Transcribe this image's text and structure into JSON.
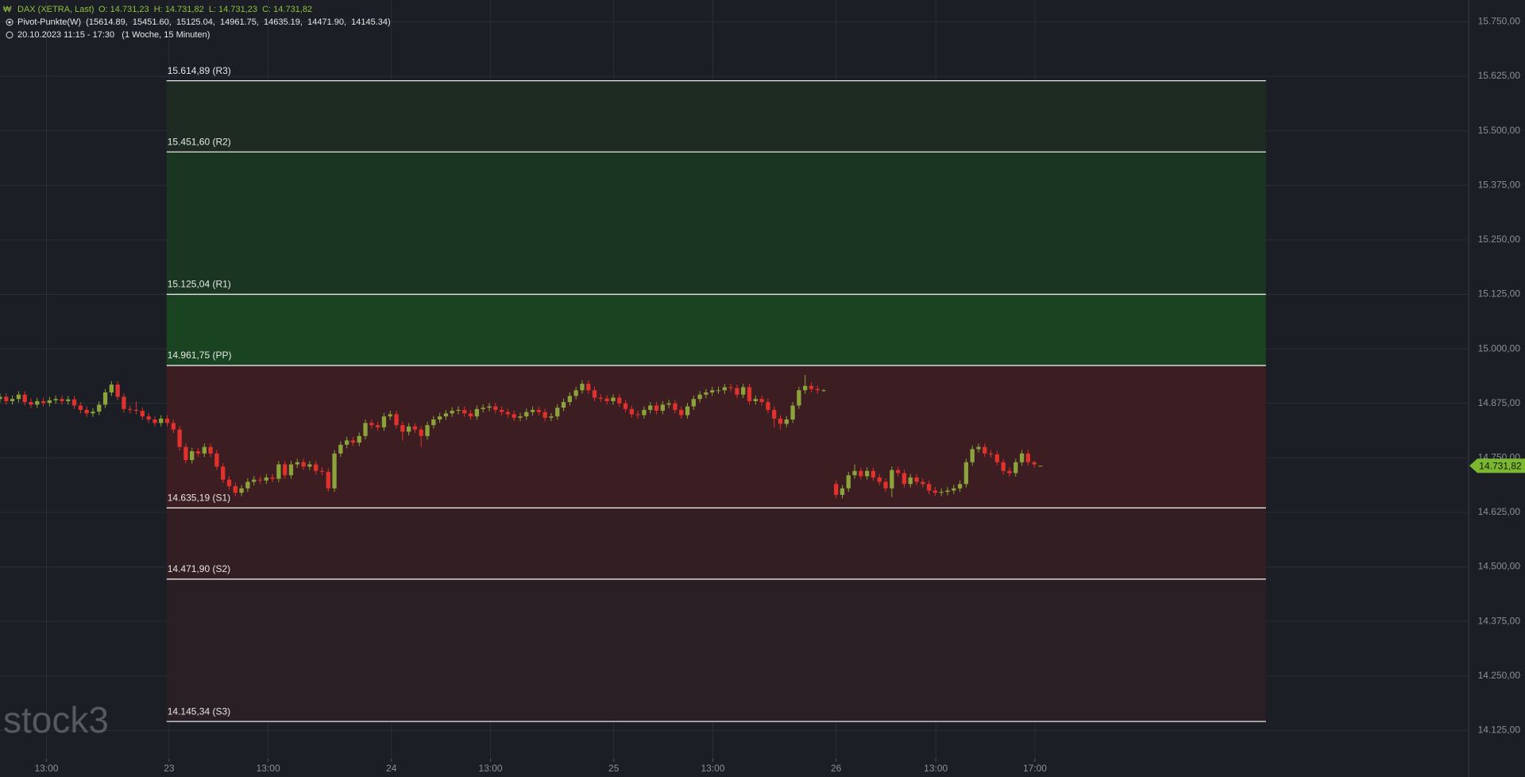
{
  "chart_data": {
    "type": "candlestick",
    "title": "DAX (XETRA, Last)",
    "ohlc_text": "O: 14.731,23  H: 14.731,82  L: 14.731,23  C: 14.731,82",
    "indicator_text": "Pivot-Punkte(W)  (15614.89,  15451.60,  15125.04,  14961.75,  14635.19,  14471.90,  14145.34)",
    "period_text": "20.10.2023 11:15 - 17:30   (1 Woche, 15 Minuten)",
    "watermark": "stock3",
    "up_color": "#8ba33a",
    "down_color": "#e0312c",
    "xlim": [
      0,
      237
    ],
    "ylim": [
      14060,
      15800
    ],
    "grid": true,
    "yticks": [
      {
        "value": 14125,
        "label": "14.125,00"
      },
      {
        "value": 14250,
        "label": "14.250,00"
      },
      {
        "value": 14375,
        "label": "14.375,00"
      },
      {
        "value": 14500,
        "label": "14.500,00"
      },
      {
        "value": 14625,
        "label": "14.625,00"
      },
      {
        "value": 14750,
        "label": "14.750,00"
      },
      {
        "value": 14875,
        "label": "14.875,00"
      },
      {
        "value": 15000,
        "label": "15.000,00"
      },
      {
        "value": 15125,
        "label": "15.125,00"
      },
      {
        "value": 15250,
        "label": "15.250,00"
      },
      {
        "value": 15375,
        "label": "15.375,00"
      },
      {
        "value": 15500,
        "label": "15.500,00"
      },
      {
        "value": 15625,
        "label": "15.625,00"
      },
      {
        "value": 15750,
        "label": "15.750,00"
      }
    ],
    "xticks": [
      {
        "value": 7.5,
        "label": "13:00"
      },
      {
        "value": 27.3,
        "label": "23"
      },
      {
        "value": 43.3,
        "label": "13:00"
      },
      {
        "value": 63.2,
        "label": "24"
      },
      {
        "value": 79.2,
        "label": "13:00"
      },
      {
        "value": 99.1,
        "label": "25"
      },
      {
        "value": 115.1,
        "label": "13:00"
      },
      {
        "value": 135,
        "label": "26"
      },
      {
        "value": 151.1,
        "label": "13:00"
      },
      {
        "value": 167.1,
        "label": "17:00"
      }
    ],
    "last_price": {
      "value": 14731.82,
      "label": "14.731,82"
    },
    "last_price_color": "#7cb82f",
    "pivot_span": [
      26.9,
      204.4
    ],
    "pivot_levels": [
      {
        "value": 15614.89,
        "label": "15.614,89 (R3)"
      },
      {
        "value": 15451.6,
        "label": "15.451,60 (R2)"
      },
      {
        "value": 15125.04,
        "label": "15.125,04 (R1)"
      },
      {
        "value": 14961.75,
        "label": "14.961,75 (PP)"
      },
      {
        "value": 14635.19,
        "label": "14.635,19 (S1)"
      },
      {
        "value": 14471.9,
        "label": "14.471,90 (S2)"
      },
      {
        "value": 14145.34,
        "label": "14.145,34 (S3)"
      }
    ],
    "zone_colors": [
      "#1d2b23",
      "#1b3523",
      "#1a4322",
      "#3b1d22",
      "#321e23",
      "#2a1f24"
    ],
    "x": [
      0,
      1,
      2,
      3,
      4,
      5,
      6,
      7,
      8,
      9,
      10,
      11,
      12,
      13,
      14,
      15,
      16,
      17,
      18,
      19,
      20,
      21,
      22,
      23,
      24,
      25,
      26,
      27,
      28,
      29,
      30,
      31,
      32,
      33,
      34,
      35,
      36,
      37,
      38,
      39,
      40,
      41,
      42,
      43,
      44,
      45,
      46,
      47,
      48,
      49,
      50,
      51,
      52,
      53,
      54,
      55,
      56,
      57,
      58,
      59,
      60,
      61,
      62,
      63,
      64,
      65,
      66,
      67,
      68,
      69,
      70,
      71,
      72,
      73,
      74,
      75,
      76,
      77,
      78,
      79,
      80,
      81,
      82,
      83,
      84,
      85,
      86,
      87,
      88,
      89,
      90,
      91,
      92,
      93,
      94,
      95,
      96,
      97,
      98,
      99,
      100,
      101,
      102,
      103,
      104,
      105,
      106,
      107,
      108,
      109,
      110,
      111,
      112,
      113,
      114,
      115,
      116,
      117,
      118,
      119,
      120,
      121,
      122,
      123,
      124,
      125,
      126,
      127,
      128,
      129,
      130,
      131,
      132,
      133,
      135,
      136,
      137,
      138,
      139,
      140,
      141,
      142,
      143,
      144,
      145,
      146,
      147,
      148,
      149,
      150,
      151,
      152,
      153,
      154,
      155,
      156,
      157,
      158,
      159,
      160,
      161,
      162,
      163,
      164,
      165,
      166,
      167,
      168
    ],
    "ohlc": [
      [
        14885,
        14898,
        14877,
        14890
      ],
      [
        14890,
        14898,
        14872,
        14880
      ],
      [
        14880,
        14893,
        14872,
        14885
      ],
      [
        14885,
        14903,
        14877,
        14895
      ],
      [
        14895,
        14903,
        14870,
        14878
      ],
      [
        14878,
        14886,
        14864,
        14872
      ],
      [
        14872,
        14888,
        14864,
        14880
      ],
      [
        14880,
        14888,
        14868,
        14876
      ],
      [
        14876,
        14890,
        14868,
        14882
      ],
      [
        14882,
        14893,
        14874,
        14885
      ],
      [
        14885,
        14893,
        14872,
        14880
      ],
      [
        14880,
        14892,
        14872,
        14884
      ],
      [
        14884,
        14892,
        14862,
        14870
      ],
      [
        14870,
        14878,
        14852,
        14860
      ],
      [
        14860,
        14868,
        14844,
        14852
      ],
      [
        14852,
        14864,
        14844,
        14856
      ],
      [
        14856,
        14880,
        14848,
        14872
      ],
      [
        14872,
        14908,
        14864,
        14900
      ],
      [
        14900,
        14926,
        14892,
        14918
      ],
      [
        14918,
        14926,
        14882,
        14890
      ],
      [
        14890,
        14898,
        14854,
        14862
      ],
      [
        14862,
        14870,
        14852,
        14860
      ],
      [
        14860,
        14880,
        14850,
        14858
      ],
      [
        14858,
        14866,
        14837,
        14845
      ],
      [
        14845,
        14853,
        14830,
        14838
      ],
      [
        14838,
        14846,
        14822,
        14830
      ],
      [
        14830,
        14848,
        14822,
        14840
      ],
      [
        14840,
        14848,
        14822,
        14830
      ],
      [
        14830,
        14838,
        14807,
        14815
      ],
      [
        14815,
        14823,
        14767,
        14775
      ],
      [
        14775,
        14783,
        14737,
        14745
      ],
      [
        14745,
        14773,
        14737,
        14765
      ],
      [
        14765,
        14773,
        14752,
        14760
      ],
      [
        14760,
        14783,
        14752,
        14775
      ],
      [
        14775,
        14783,
        14752,
        14760
      ],
      [
        14760,
        14768,
        14722,
        14730
      ],
      [
        14730,
        14738,
        14692,
        14700
      ],
      [
        14700,
        14708,
        14677,
        14685
      ],
      [
        14685,
        14693,
        14662,
        14670
      ],
      [
        14670,
        14688,
        14662,
        14680
      ],
      [
        14680,
        14703,
        14672,
        14695
      ],
      [
        14695,
        14708,
        14687,
        14700
      ],
      [
        14700,
        14708,
        14690,
        14698
      ],
      [
        14698,
        14713,
        14690,
        14705
      ],
      [
        14705,
        14713,
        14694,
        14702
      ],
      [
        14702,
        14743,
        14694,
        14735
      ],
      [
        14735,
        14743,
        14702,
        14710
      ],
      [
        14710,
        14743,
        14702,
        14735
      ],
      [
        14735,
        14748,
        14727,
        14740
      ],
      [
        14740,
        14748,
        14722,
        14730
      ],
      [
        14730,
        14743,
        14722,
        14735
      ],
      [
        14735,
        14743,
        14712,
        14720
      ],
      [
        14720,
        14728,
        14710,
        14718
      ],
      [
        14718,
        14726,
        14672,
        14680
      ],
      [
        14680,
        14768,
        14672,
        14760
      ],
      [
        14760,
        14788,
        14752,
        14780
      ],
      [
        14780,
        14798,
        14772,
        14790
      ],
      [
        14790,
        14798,
        14777,
        14785
      ],
      [
        14785,
        14808,
        14777,
        14800
      ],
      [
        14800,
        14838,
        14792,
        14830
      ],
      [
        14830,
        14838,
        14817,
        14825
      ],
      [
        14825,
        14833,
        14812,
        14820
      ],
      [
        14820,
        14853,
        14812,
        14845
      ],
      [
        14845,
        14858,
        14837,
        14850
      ],
      [
        14850,
        14858,
        14817,
        14825
      ],
      [
        14825,
        14833,
        14790,
        14810
      ],
      [
        14810,
        14830,
        14802,
        14822
      ],
      [
        14822,
        14830,
        14807,
        14815
      ],
      [
        14815,
        14823,
        14775,
        14800
      ],
      [
        14800,
        14833,
        14792,
        14825
      ],
      [
        14825,
        14846,
        14817,
        14838
      ],
      [
        14838,
        14853,
        14830,
        14845
      ],
      [
        14845,
        14860,
        14837,
        14852
      ],
      [
        14852,
        14866,
        14844,
        14858
      ],
      [
        14858,
        14868,
        14850,
        14860
      ],
      [
        14860,
        14868,
        14844,
        14852
      ],
      [
        14852,
        14860,
        14837,
        14845
      ],
      [
        14845,
        14870,
        14837,
        14862
      ],
      [
        14862,
        14873,
        14854,
        14865
      ],
      [
        14865,
        14876,
        14857,
        14868
      ],
      [
        14868,
        14876,
        14852,
        14860
      ],
      [
        14860,
        14868,
        14847,
        14855
      ],
      [
        14855,
        14863,
        14842,
        14850
      ],
      [
        14850,
        14858,
        14834,
        14842
      ],
      [
        14842,
        14853,
        14834,
        14845
      ],
      [
        14845,
        14863,
        14837,
        14855
      ],
      [
        14855,
        14868,
        14847,
        14860
      ],
      [
        14860,
        14868,
        14847,
        14855
      ],
      [
        14855,
        14863,
        14834,
        14842
      ],
      [
        14842,
        14853,
        14834,
        14845
      ],
      [
        14845,
        14873,
        14837,
        14865
      ],
      [
        14865,
        14886,
        14857,
        14878
      ],
      [
        14878,
        14900,
        14870,
        14892
      ],
      [
        14892,
        14913,
        14884,
        14905
      ],
      [
        14905,
        14928,
        14897,
        14920
      ],
      [
        14920,
        14928,
        14897,
        14905
      ],
      [
        14905,
        14913,
        14880,
        14888
      ],
      [
        14888,
        14896,
        14878,
        14886
      ],
      [
        14886,
        14894,
        14872,
        14880
      ],
      [
        14880,
        14896,
        14872,
        14888
      ],
      [
        14888,
        14896,
        14867,
        14875
      ],
      [
        14875,
        14883,
        14854,
        14862
      ],
      [
        14862,
        14870,
        14842,
        14850
      ],
      [
        14850,
        14858,
        14840,
        14848
      ],
      [
        14848,
        14868,
        14840,
        14860
      ],
      [
        14860,
        14878,
        14852,
        14870
      ],
      [
        14870,
        14878,
        14850,
        14858
      ],
      [
        14858,
        14880,
        14850,
        14872
      ],
      [
        14872,
        14883,
        14864,
        14875
      ],
      [
        14875,
        14883,
        14852,
        14860
      ],
      [
        14860,
        14868,
        14840,
        14848
      ],
      [
        14848,
        14876,
        14840,
        14868
      ],
      [
        14868,
        14893,
        14860,
        14885
      ],
      [
        14885,
        14903,
        14877,
        14895
      ],
      [
        14895,
        14908,
        14887,
        14900
      ],
      [
        14900,
        14913,
        14892,
        14905
      ],
      [
        14905,
        14913,
        14897,
        14905
      ],
      [
        14905,
        14920,
        14897,
        14912
      ],
      [
        14912,
        14920,
        14902,
        14910
      ],
      [
        14910,
        14918,
        14887,
        14895
      ],
      [
        14895,
        14920,
        14887,
        14912
      ],
      [
        14912,
        14920,
        14872,
        14880
      ],
      [
        14880,
        14893,
        14872,
        14885
      ],
      [
        14885,
        14893,
        14870,
        14878
      ],
      [
        14878,
        14886,
        14852,
        14860
      ],
      [
        14860,
        14868,
        14820,
        14840
      ],
      [
        14840,
        14848,
        14815,
        14828
      ],
      [
        14828,
        14846,
        14820,
        14838
      ],
      [
        14838,
        14878,
        14830,
        14870
      ],
      [
        14870,
        14913,
        14862,
        14905
      ],
      [
        14905,
        14940,
        14897,
        14915
      ],
      [
        14915,
        14923,
        14900,
        14908
      ],
      [
        14908,
        14916,
        14897,
        14905
      ],
      [
        14905,
        14908,
        14902,
        14905
      ],
      [
        14690,
        14698,
        14657,
        14665
      ],
      [
        14665,
        14688,
        14657,
        14680
      ],
      [
        14680,
        14718,
        14672,
        14710
      ],
      [
        14710,
        14735,
        14702,
        14720
      ],
      [
        14720,
        14728,
        14700,
        14708
      ],
      [
        14708,
        14728,
        14700,
        14720
      ],
      [
        14720,
        14728,
        14697,
        14705
      ],
      [
        14705,
        14713,
        14687,
        14695
      ],
      [
        14695,
        14703,
        14672,
        14680
      ],
      [
        14680,
        14730,
        14660,
        14722
      ],
      [
        14722,
        14730,
        14707,
        14715
      ],
      [
        14715,
        14723,
        14682,
        14690
      ],
      [
        14690,
        14713,
        14682,
        14705
      ],
      [
        14705,
        14713,
        14687,
        14695
      ],
      [
        14695,
        14703,
        14682,
        14690
      ],
      [
        14690,
        14698,
        14667,
        14675
      ],
      [
        14675,
        14683,
        14662,
        14670
      ],
      [
        14670,
        14680,
        14662,
        14672
      ],
      [
        14672,
        14683,
        14664,
        14675
      ],
      [
        14675,
        14688,
        14667,
        14680
      ],
      [
        14680,
        14698,
        14672,
        14690
      ],
      [
        14690,
        14748,
        14682,
        14740
      ],
      [
        14740,
        14778,
        14732,
        14770
      ],
      [
        14770,
        14783,
        14762,
        14775
      ],
      [
        14775,
        14783,
        14752,
        14760
      ],
      [
        14760,
        14768,
        14750,
        14758
      ],
      [
        14758,
        14766,
        14732,
        14740
      ],
      [
        14740,
        14748,
        14712,
        14720
      ],
      [
        14720,
        14728,
        14707,
        14715
      ],
      [
        14715,
        14748,
        14707,
        14740
      ],
      [
        14740,
        14768,
        14732,
        14760
      ],
      [
        14760,
        14768,
        14732,
        14740
      ],
      [
        14740,
        14743,
        14727,
        14735
      ],
      [
        14731.23,
        14731.82,
        14731.23,
        14731.82
      ]
    ]
  }
}
